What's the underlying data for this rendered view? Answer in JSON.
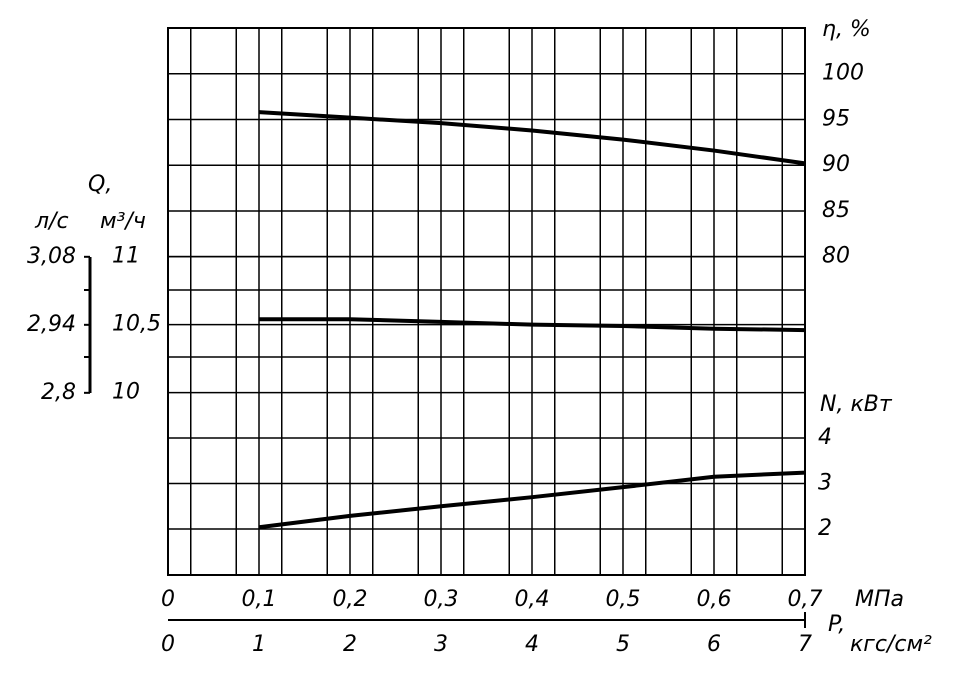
{
  "chart_data": {
    "type": "line",
    "x_label": "P,",
    "x": [
      0.1,
      0.2,
      0.3,
      0.4,
      0.5,
      0.6,
      0.7
    ],
    "xlim": [
      0,
      0.7
    ],
    "xticks": [
      0,
      {
        "value": 0.1,
        "label": "0,1"
      },
      {
        "value": 0.2,
        "label": "0,2"
      },
      {
        "value": 0.3,
        "label": "0,3"
      },
      {
        "value": 0.4,
        "label": "0,4"
      },
      {
        "value": 0.5,
        "label": "0,5"
      },
      {
        "value": 0.6,
        "label": "0,6"
      },
      {
        "value": 0.7,
        "label": "0,7"
      }
    ],
    "x_unit": "МПа",
    "x2lim": [
      0,
      7
    ],
    "x2ticks": [
      0,
      1,
      2,
      3,
      4,
      5,
      6,
      7
    ],
    "x2_unit": "кгс/см²",
    "q_title": "Q,",
    "y_axes": {
      "eta": {
        "label": "η, %",
        "lim": [
          45.2,
          105
        ],
        "ticks": [
          100,
          95,
          90,
          85,
          80
        ]
      },
      "N": {
        "label": "N, кВт",
        "lim": [
          0.99,
          13.01
        ],
        "ticks": [
          4,
          3,
          2
        ]
      },
      "Q": {
        "label": "м³/ч",
        "lim": [
          8.66,
          12.68
        ],
        "ticks": [
          11,
          {
            "value": 10.5,
            "label": "10,5"
          },
          10
        ]
      },
      "Q_ls": {
        "label": "л/с",
        "lim": [
          2.425,
          3.551
        ],
        "ticks": [
          {
            "value": 3.08,
            "label": "3,08"
          },
          {
            "value": 2.94,
            "label": "2,94"
          },
          {
            "value": 2.8,
            "label": "2,8"
          }
        ]
      }
    },
    "series": [
      {
        "axis": "eta",
        "color": "#000000",
        "values": [
          95.8,
          95.2,
          94.6,
          93.8,
          92.8,
          91.6,
          90.2
        ]
      },
      {
        "axis": "Q",
        "color": "#000000",
        "values": [
          10.54,
          10.54,
          10.52,
          10.5,
          10.49,
          10.47,
          10.46
        ]
      },
      {
        "axis": "N",
        "color": "#000000",
        "values": [
          2.04,
          2.29,
          2.5,
          2.7,
          2.92,
          3.15,
          3.24
        ]
      }
    ],
    "grid": true
  }
}
